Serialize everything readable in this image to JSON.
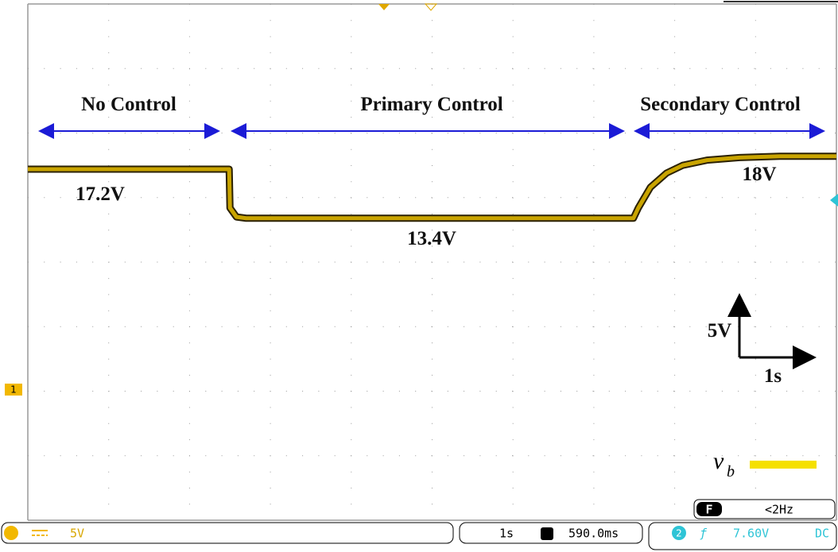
{
  "chart_data": {
    "type": "line",
    "xlim": [
      0,
      10
    ],
    "ylim": [
      -10,
      30
    ],
    "x": [
      0,
      2.49,
      2.5,
      2.58,
      2.7,
      7.49,
      7.55,
      7.7,
      7.9,
      8.1,
      8.4,
      8.8,
      9.3,
      10
    ],
    "series": [
      {
        "name": "v",
        "name_subscript": "b",
        "color": "#c9a400",
        "values": [
          17.2,
          17.2,
          14.2,
          13.5,
          13.4,
          13.4,
          14.2,
          15.8,
          16.9,
          17.5,
          17.9,
          18.1,
          18.2,
          18.2
        ]
      }
    ],
    "annotations": {
      "no_control": "No Control",
      "primary_control": "Primary Control",
      "secondary_control": "Secondary Control",
      "level_1": "17.2V",
      "level_2": "13.4V",
      "level_3": "18V",
      "scale_v": "5V",
      "scale_t": "1s"
    },
    "status": {
      "channel_marker": "1",
      "channel_scale": "5V",
      "timebase": "1s",
      "delay": "590.0ms",
      "trigger_mode": "F",
      "trigger_freq": "<2Hz",
      "trigger_channel": "2",
      "trigger_level": "7.60V",
      "trigger_coupling": "DC"
    }
  }
}
